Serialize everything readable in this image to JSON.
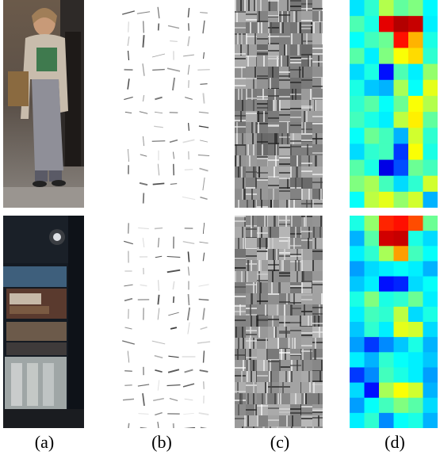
{
  "labels": {
    "a": "(a)",
    "b": "(b)",
    "c": "(c)",
    "d": "(d)"
  },
  "colors": {
    "background": "#ffffff",
    "heatmap_low": "#0a1a9e",
    "heatmap_high": "#e0141a"
  },
  "heatmap_top": [
    [
      0.35,
      0.42,
      0.55,
      0.47,
      0.5,
      0.37
    ],
    [
      0.45,
      0.4,
      0.9,
      0.95,
      0.93,
      0.36
    ],
    [
      0.38,
      0.44,
      0.48,
      0.86,
      0.7,
      0.4
    ],
    [
      0.46,
      0.36,
      0.5,
      0.62,
      0.66,
      0.42
    ],
    [
      0.34,
      0.4,
      0.14,
      0.45,
      0.36,
      0.52
    ],
    [
      0.4,
      0.32,
      0.3,
      0.54,
      0.38,
      0.6
    ],
    [
      0.42,
      0.46,
      0.38,
      0.48,
      0.62,
      0.55
    ],
    [
      0.44,
      0.4,
      0.36,
      0.56,
      0.64,
      0.47
    ],
    [
      0.38,
      0.48,
      0.44,
      0.3,
      0.58,
      0.42
    ],
    [
      0.34,
      0.42,
      0.44,
      0.18,
      0.62,
      0.4
    ],
    [
      0.46,
      0.4,
      0.1,
      0.2,
      0.48,
      0.44
    ],
    [
      0.5,
      0.54,
      0.44,
      0.34,
      0.42,
      0.58
    ],
    [
      0.38,
      0.56,
      0.6,
      0.52,
      0.58,
      0.3
    ]
  ],
  "heatmap_bottom": [
    [
      0.4,
      0.52,
      0.84,
      0.86,
      0.8,
      0.48
    ],
    [
      0.3,
      0.46,
      0.92,
      0.93,
      0.4,
      0.34
    ],
    [
      0.36,
      0.42,
      0.54,
      0.72,
      0.44,
      0.38
    ],
    [
      0.28,
      0.34,
      0.36,
      0.38,
      0.36,
      0.3
    ],
    [
      0.32,
      0.36,
      0.14,
      0.16,
      0.34,
      0.38
    ],
    [
      0.4,
      0.5,
      0.4,
      0.42,
      0.48,
      0.36
    ],
    [
      0.36,
      0.44,
      0.42,
      0.56,
      0.34,
      0.4
    ],
    [
      0.32,
      0.42,
      0.36,
      0.6,
      0.58,
      0.34
    ],
    [
      0.28,
      0.18,
      0.26,
      0.32,
      0.4,
      0.3
    ],
    [
      0.36,
      0.3,
      0.42,
      0.38,
      0.36,
      0.32
    ],
    [
      0.18,
      0.26,
      0.44,
      0.4,
      0.36,
      0.28
    ],
    [
      0.34,
      0.14,
      0.54,
      0.62,
      0.58,
      0.3
    ],
    [
      0.28,
      0.38,
      0.44,
      0.5,
      0.46,
      0.34
    ],
    [
      0.36,
      0.42,
      0.26,
      0.38,
      0.4,
      0.3
    ]
  ]
}
